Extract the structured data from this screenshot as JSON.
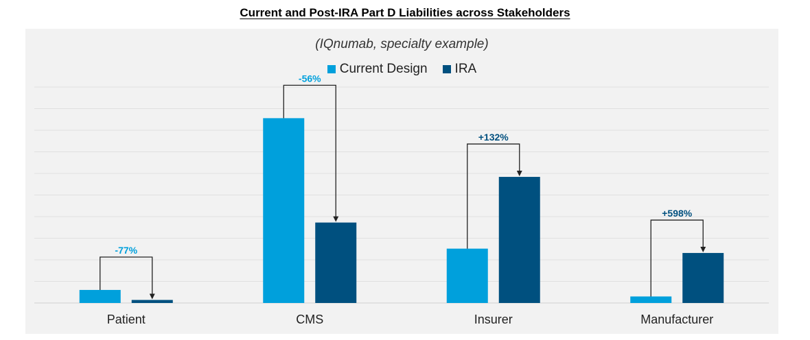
{
  "colors": {
    "current": "#00a0dc",
    "ira": "#00507f",
    "grid": "#e0e0e0",
    "panel": "#f2f2f2"
  },
  "chart_data": {
    "type": "bar",
    "title": "Current and Post-IRA Part D Liabilities across Stakeholders",
    "subtitle": "(IQnumab, specialty example)",
    "xlabel": "",
    "ylabel": "",
    "ylim": [
      0,
      9
    ],
    "grid": true,
    "legend_position": "top",
    "categories": [
      "Patient",
      "CMS",
      "Insurer",
      "Manufacturer"
    ],
    "series": [
      {
        "name": "Current Design",
        "color": "#00a0dc",
        "values": [
          0.6,
          8.5,
          2.5,
          0.3
        ]
      },
      {
        "name": "IRA",
        "color": "#00507f",
        "values": [
          0.14,
          3.7,
          5.8,
          2.3
        ]
      }
    ],
    "annotations": [
      {
        "category": "Patient",
        "label": "-77%",
        "color": "#00a0dc"
      },
      {
        "category": "CMS",
        "label": "-56%",
        "color": "#00a0dc"
      },
      {
        "category": "Insurer",
        "label": "+132%",
        "color": "#00507f"
      },
      {
        "category": "Manufacturer",
        "label": "+598%",
        "color": "#00507f"
      }
    ]
  }
}
